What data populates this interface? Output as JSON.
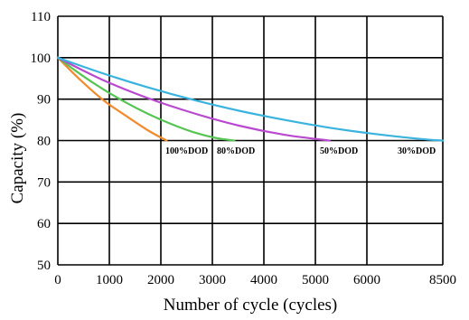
{
  "chart_data": {
    "type": "line",
    "title": "",
    "xlabel": "Number of cycle (cycles)",
    "ylabel": "Capacity (%)",
    "xlim": [
      0,
      8500
    ],
    "ylim": [
      50,
      110
    ],
    "grid": true,
    "x_tick_labels": [
      "0",
      "1000",
      "2000",
      "3000",
      "4000",
      "5000",
      "6000",
      "8500"
    ],
    "y_ticks": [
      50,
      60,
      70,
      80,
      90,
      100,
      110
    ],
    "series": [
      {
        "name": "100%DOD",
        "color": "#f28a2e",
        "x": [
          0,
          500,
          1000,
          1500,
          2000,
          2400
        ],
        "y": [
          100,
          94.6,
          89.8,
          86.0,
          82.4,
          80
        ]
      },
      {
        "name": "80%DOD",
        "color": "#55c455",
        "x": [
          0,
          500,
          1000,
          1500,
          2000,
          2500,
          3000,
          3500,
          3900
        ],
        "y": [
          100,
          96.0,
          92.4,
          89.2,
          86.4,
          84.0,
          82.0,
          80.6,
          80
        ]
      },
      {
        "name": "50%DOD",
        "color": "#b94ad0",
        "x": [
          0,
          1000,
          2000,
          3000,
          4000,
          5000,
          6000
        ],
        "y": [
          100,
          94.6,
          90.2,
          86.6,
          83.6,
          81.4,
          80
        ]
      },
      {
        "name": "30%DOD",
        "color": "#3ab3de",
        "x": [
          0,
          1000,
          2000,
          3000,
          4000,
          5000,
          6000,
          7000,
          8000,
          8500
        ],
        "y": [
          100,
          96.2,
          92.8,
          89.8,
          87.2,
          85.0,
          83.1,
          81.6,
          80.4,
          80
        ]
      }
    ]
  }
}
